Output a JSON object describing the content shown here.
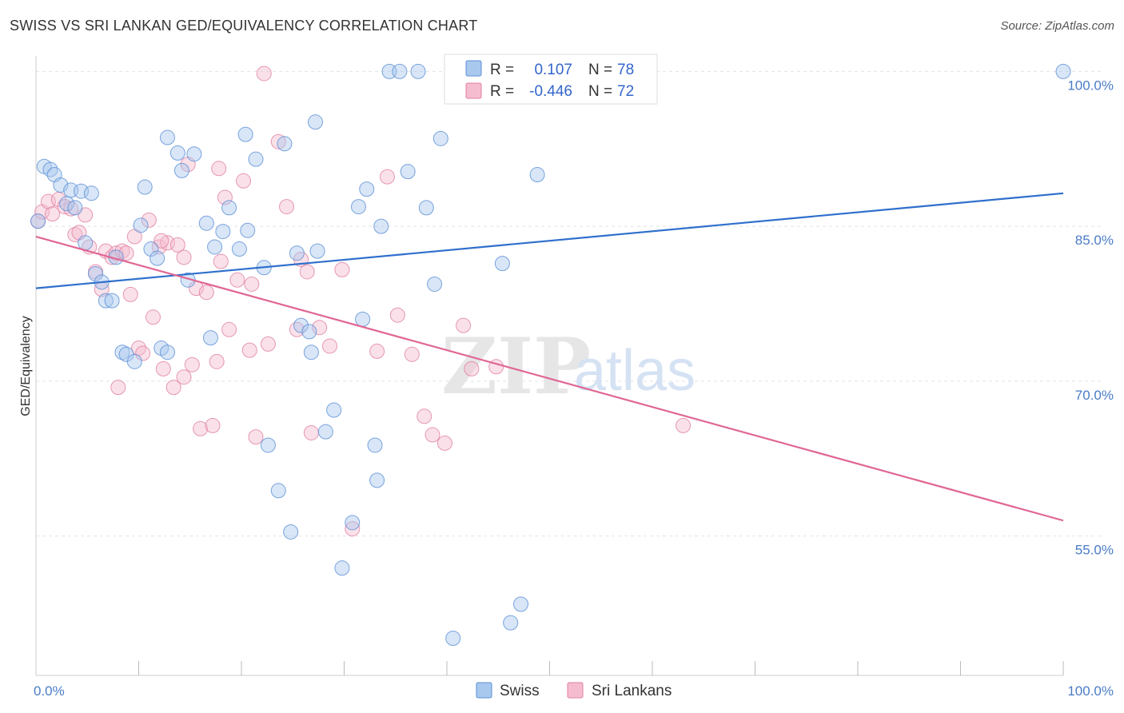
{
  "title": "SWISS VS SRI LANKAN GED/EQUIVALENCY CORRELATION CHART",
  "source": "Source: ZipAtlas.com",
  "watermark": {
    "zip": "ZIP",
    "atlas": "atlas"
  },
  "colors": {
    "swiss_fill": "#a9c8ee",
    "swiss_stroke": "#5b8fd6",
    "swiss_line": "#2f6fcc",
    "srilankan_fill": "#f5bccf",
    "srilankan_stroke": "#e07fa2",
    "srilankan_line": "#e06694",
    "grid": "#e4e4e4",
    "tick_label": "#4a7cc7"
  },
  "legend": {
    "rows": [
      {
        "r_label": "R =",
        "r_value": "0.107",
        "n_label": "N =",
        "n_value": "78",
        "series": "swiss"
      },
      {
        "r_label": "R =",
        "r_value": "-0.446",
        "n_label": "N =",
        "n_value": "72",
        "series": "srilankan"
      }
    ]
  },
  "bottom_legend": {
    "swiss": "Swiss",
    "srilankan": "Sri Lankans"
  },
  "chart_data": {
    "type": "scatter",
    "title": "SWISS VS SRI LANKAN GED/EQUIVALENCY CORRELATION CHART",
    "xlabel": "",
    "ylabel": "GED/Equivalency",
    "xlim": [
      0,
      100
    ],
    "ylim": [
      41.5,
      101.5
    ],
    "x_tick_labels": [
      "0.0%",
      "100.0%"
    ],
    "y_ticks": [
      55,
      70,
      85,
      100
    ],
    "y_tick_labels": [
      "55.0%",
      "70.0%",
      "85.0%",
      "100.0%"
    ],
    "grid": true,
    "legend_position": "top-center",
    "series": [
      {
        "name": "Swiss",
        "r": 0.107,
        "n": 78,
        "trend": {
          "x": [
            0,
            100
          ],
          "y": [
            79.0,
            88.2
          ]
        },
        "points": [
          [
            0.2,
            85.5
          ],
          [
            0.8,
            90.8
          ],
          [
            1.4,
            90.5
          ],
          [
            1.8,
            90.0
          ],
          [
            2.4,
            89.0
          ],
          [
            3.0,
            87.2
          ],
          [
            3.4,
            88.5
          ],
          [
            3.8,
            86.8
          ],
          [
            4.4,
            88.4
          ],
          [
            5.4,
            88.2
          ],
          [
            4.8,
            83.4
          ],
          [
            5.8,
            80.4
          ],
          [
            6.4,
            79.6
          ],
          [
            6.8,
            77.8
          ],
          [
            7.4,
            77.8
          ],
          [
            7.8,
            82.0
          ],
          [
            8.4,
            72.8
          ],
          [
            8.8,
            72.6
          ],
          [
            9.6,
            71.9
          ],
          [
            10.2,
            85.1
          ],
          [
            10.6,
            88.8
          ],
          [
            11.2,
            82.8
          ],
          [
            11.8,
            81.9
          ],
          [
            12.2,
            73.2
          ],
          [
            12.8,
            72.8
          ],
          [
            12.8,
            93.6
          ],
          [
            13.8,
            92.1
          ],
          [
            14.2,
            90.4
          ],
          [
            14.8,
            79.8
          ],
          [
            15.4,
            92.0
          ],
          [
            16.6,
            85.3
          ],
          [
            17.4,
            83.0
          ],
          [
            18.2,
            84.5
          ],
          [
            18.8,
            86.8
          ],
          [
            19.8,
            82.8
          ],
          [
            20.4,
            93.9
          ],
          [
            21.4,
            91.5
          ],
          [
            22.2,
            81.0
          ],
          [
            22.6,
            63.8
          ],
          [
            23.6,
            59.4
          ],
          [
            24.2,
            93.0
          ],
          [
            25.4,
            82.4
          ],
          [
            25.8,
            75.4
          ],
          [
            26.6,
            74.8
          ],
          [
            26.8,
            72.8
          ],
          [
            27.2,
            95.1
          ],
          [
            27.4,
            82.6
          ],
          [
            28.2,
            65.1
          ],
          [
            29.0,
            67.2
          ],
          [
            29.8,
            51.9
          ],
          [
            30.8,
            56.3
          ],
          [
            31.4,
            86.9
          ],
          [
            31.8,
            76.0
          ],
          [
            32.2,
            88.6
          ],
          [
            33.0,
            63.8
          ],
          [
            33.6,
            85.0
          ],
          [
            33.2,
            60.4
          ],
          [
            34.4,
            100.0
          ],
          [
            35.4,
            100.0
          ],
          [
            36.2,
            90.3
          ],
          [
            37.2,
            100.0
          ],
          [
            38.0,
            86.8
          ],
          [
            38.8,
            79.4
          ],
          [
            39.4,
            93.5
          ],
          [
            40.6,
            45.1
          ],
          [
            41.6,
            99.3
          ],
          [
            42.6,
            100.0
          ],
          [
            44.8,
            98.9
          ],
          [
            45.4,
            81.4
          ],
          [
            46.2,
            46.6
          ],
          [
            47.2,
            48.4
          ],
          [
            47.8,
            99.8
          ],
          [
            48.8,
            90.0
          ],
          [
            52.0,
            99.7
          ],
          [
            20.6,
            84.6
          ],
          [
            17.0,
            74.2
          ],
          [
            24.8,
            55.4
          ],
          [
            100.0,
            100.0
          ]
        ]
      },
      {
        "name": "Sri Lankans",
        "r": -0.446,
        "n": 72,
        "trend": {
          "x": [
            0,
            100
          ],
          "y": [
            84.0,
            56.5
          ]
        },
        "points": [
          [
            0.2,
            85.5
          ],
          [
            0.6,
            86.4
          ],
          [
            1.2,
            87.4
          ],
          [
            1.6,
            86.2
          ],
          [
            2.2,
            87.6
          ],
          [
            2.8,
            86.9
          ],
          [
            3.4,
            86.7
          ],
          [
            3.8,
            84.2
          ],
          [
            4.2,
            84.4
          ],
          [
            4.8,
            86.1
          ],
          [
            5.2,
            83.0
          ],
          [
            5.8,
            80.6
          ],
          [
            6.4,
            78.9
          ],
          [
            6.8,
            82.6
          ],
          [
            7.4,
            82.0
          ],
          [
            7.8,
            82.4
          ],
          [
            8.0,
            69.4
          ],
          [
            8.4,
            82.6
          ],
          [
            8.8,
            82.4
          ],
          [
            9.2,
            78.4
          ],
          [
            9.6,
            84.0
          ],
          [
            10.0,
            73.2
          ],
          [
            10.4,
            72.7
          ],
          [
            11.0,
            85.6
          ],
          [
            11.4,
            76.2
          ],
          [
            12.0,
            83.0
          ],
          [
            12.4,
            71.2
          ],
          [
            12.8,
            83.4
          ],
          [
            13.4,
            69.4
          ],
          [
            13.8,
            83.2
          ],
          [
            14.4,
            70.4
          ],
          [
            14.8,
            91.0
          ],
          [
            15.2,
            71.6
          ],
          [
            15.6,
            79.0
          ],
          [
            16.0,
            65.4
          ],
          [
            16.6,
            78.6
          ],
          [
            17.2,
            65.7
          ],
          [
            17.6,
            71.9
          ],
          [
            18.0,
            81.6
          ],
          [
            18.4,
            87.8
          ],
          [
            18.8,
            75.0
          ],
          [
            19.6,
            79.8
          ],
          [
            20.2,
            89.4
          ],
          [
            20.8,
            73.0
          ],
          [
            21.4,
            64.6
          ],
          [
            22.2,
            99.8
          ],
          [
            22.6,
            73.6
          ],
          [
            23.6,
            93.2
          ],
          [
            24.4,
            86.9
          ],
          [
            25.4,
            75.0
          ],
          [
            25.8,
            81.8
          ],
          [
            26.4,
            80.6
          ],
          [
            26.8,
            65.0
          ],
          [
            27.6,
            75.2
          ],
          [
            28.6,
            73.4
          ],
          [
            29.8,
            80.8
          ],
          [
            30.8,
            55.7
          ],
          [
            33.2,
            72.9
          ],
          [
            34.2,
            89.8
          ],
          [
            35.2,
            76.4
          ],
          [
            36.6,
            72.6
          ],
          [
            37.8,
            66.6
          ],
          [
            38.6,
            64.8
          ],
          [
            39.8,
            64.0
          ],
          [
            41.6,
            75.4
          ],
          [
            42.4,
            71.2
          ],
          [
            44.8,
            71.4
          ],
          [
            63.0,
            65.7
          ],
          [
            21.0,
            79.4
          ],
          [
            14.4,
            82.0
          ],
          [
            12.2,
            83.6
          ],
          [
            17.8,
            90.6
          ]
        ]
      }
    ]
  }
}
